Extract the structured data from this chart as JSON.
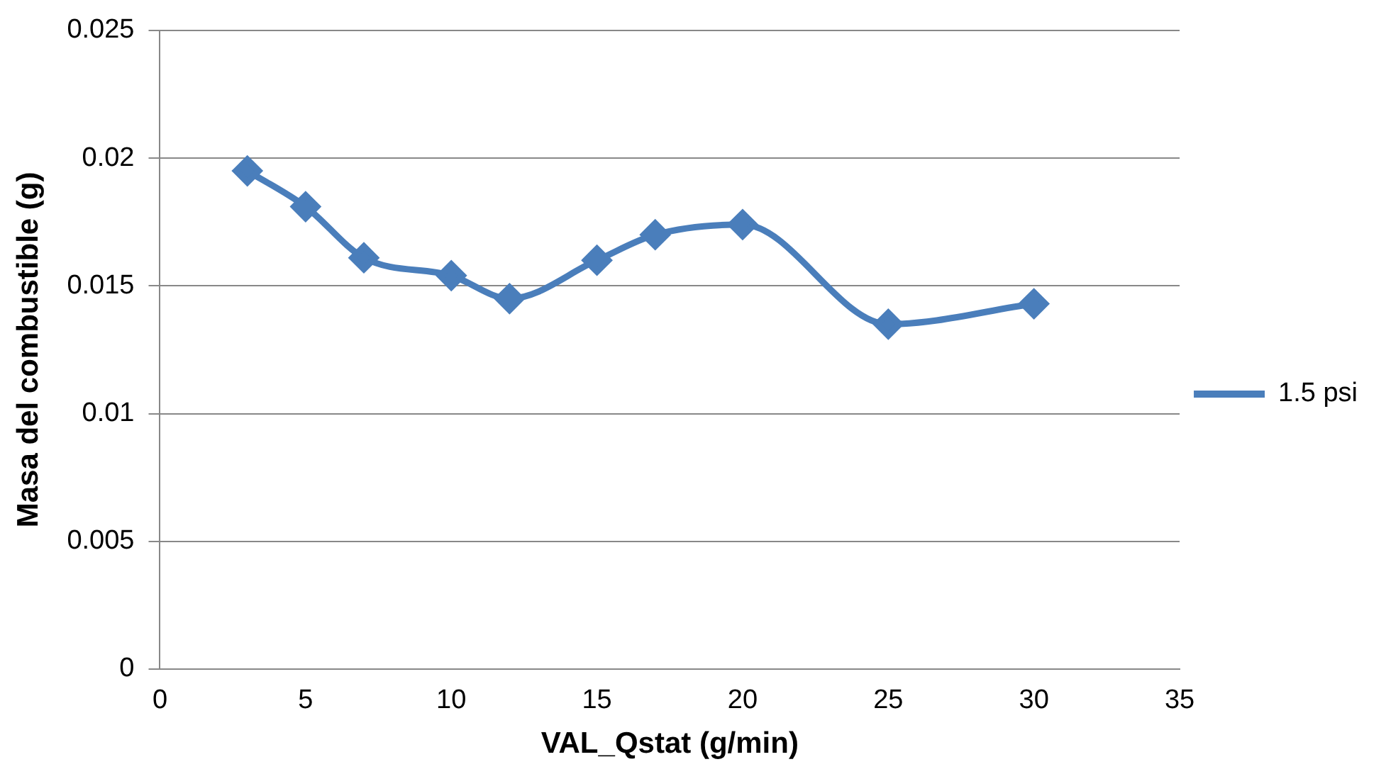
{
  "chart_data": {
    "type": "line",
    "xlabel": "VAL_Qstat (g/min)",
    "ylabel": "Masa del combustible (g)",
    "x": [
      3,
      5,
      7,
      10,
      12,
      15,
      17,
      20,
      25,
      30
    ],
    "series": [
      {
        "name": "1.5 psi",
        "color": "#4a7ebb",
        "values": [
          0.0195,
          0.0181,
          0.0161,
          0.0154,
          0.0145,
          0.016,
          0.017,
          0.0174,
          0.0135,
          0.0143
        ]
      }
    ],
    "xlim": [
      0,
      35
    ],
    "xticks": [
      0,
      5,
      10,
      15,
      20,
      25,
      30,
      35
    ],
    "ylim": [
      0,
      0.025
    ],
    "yticks": [
      0,
      0.005,
      0.01,
      0.015,
      0.02,
      0.025
    ],
    "grid": "y",
    "legend": "right",
    "marker": "diamond",
    "line_style": "solid"
  }
}
